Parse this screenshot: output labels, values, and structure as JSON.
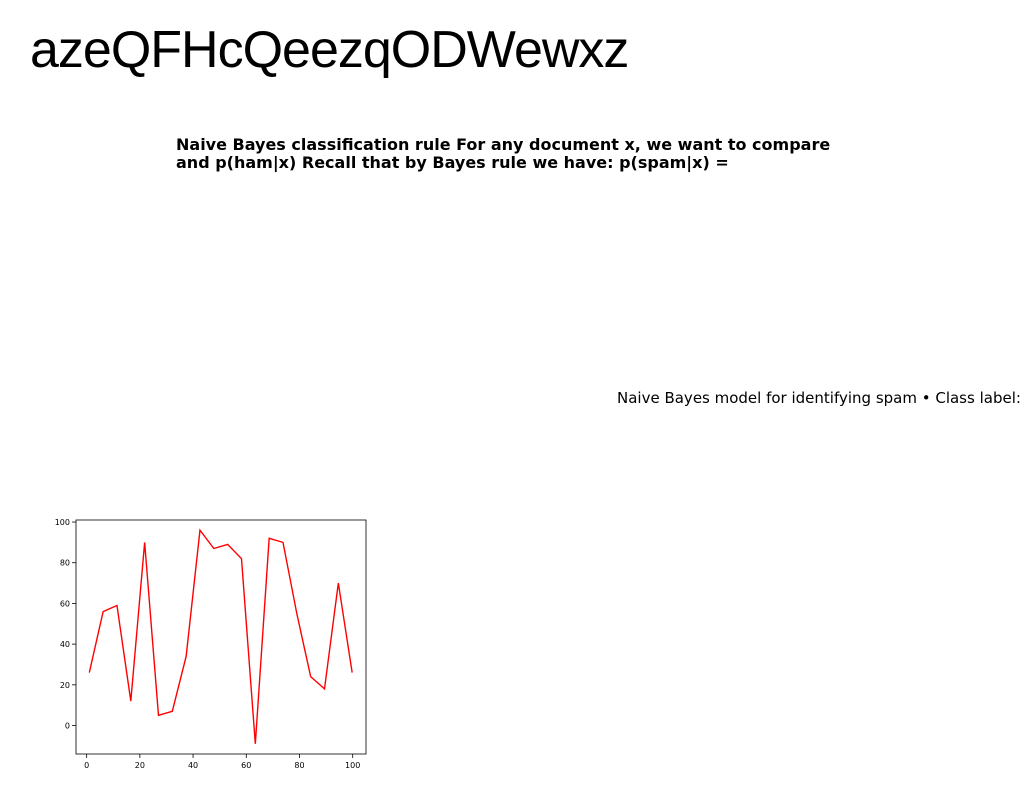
{
  "page": {
    "title": "azeQFHcQeezqODWewxz",
    "paragraph": "Naive Bayes classification rule For any document x, we want to compare and p(ham|x) Recall that by Bayes rule we have: p(spam|x) =",
    "side_text": "Naive Bayes model for identifying spam • Class label:"
  },
  "chart_data": {
    "type": "line",
    "title": "",
    "xlabel": "",
    "ylabel": "",
    "xlim": [
      -4,
      105
    ],
    "ylim": [
      -14,
      101
    ],
    "xticks": [
      0,
      20,
      40,
      60,
      80,
      100
    ],
    "yticks": [
      0,
      20,
      40,
      60,
      80,
      100
    ],
    "grid": false,
    "series": [
      {
        "color": "#ff0000",
        "x": [
          1.0,
          6.2,
          11.4,
          16.6,
          21.8,
          27.0,
          32.2,
          37.4,
          42.6,
          47.8,
          53.0,
          58.2,
          63.4,
          68.6,
          73.8,
          79.0,
          84.2,
          89.4,
          94.6,
          99.8
        ],
        "y": [
          26,
          56,
          59,
          12,
          90,
          5,
          7,
          34,
          96,
          87,
          89,
          82,
          -9,
          92,
          90,
          55,
          24,
          18,
          70,
          26
        ]
      }
    ]
  }
}
